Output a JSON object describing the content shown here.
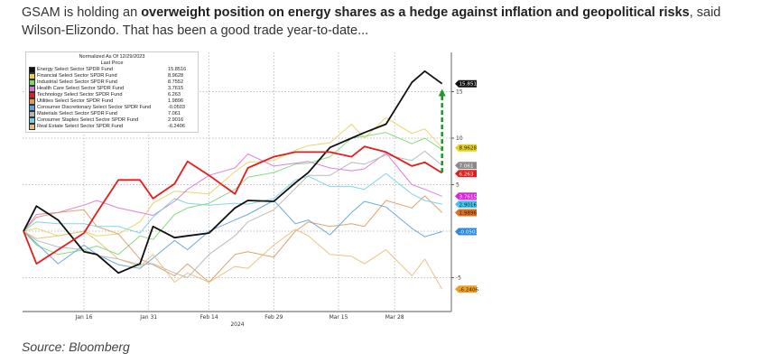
{
  "article": {
    "text_before": "GSAM is holding an ",
    "text_bold": "overweight position on energy shares as a hedge against inflation and geopolitical risks",
    "text_after": ", said Wilson-Elizondo. That has been a good trade year-to-date...",
    "source": "Source: Bloomberg"
  },
  "chart_data": {
    "type": "line",
    "legend_title": "Normalized As Of 12/29/2023",
    "legend_subtitle": "Last Price",
    "legend_position": "top-left",
    "grid": true,
    "xlabel": "2024",
    "x_ticks": [
      "Jan 16",
      "Jan 31",
      "Feb 14",
      "Feb 29",
      "Mar 15",
      "Mar 28"
    ],
    "x_tick_dates": [
      "2024-01-16",
      "2024-01-31",
      "2024-02-14",
      "2024-02-29",
      "2024-03-15",
      "2024-03-28"
    ],
    "y_ticks": [
      "15",
      "10",
      "5",
      "-5"
    ],
    "y_tick_values": [
      15,
      10,
      5,
      -5
    ],
    "ylim": [
      -9,
      19
    ],
    "y_axis_side": "right",
    "x": [
      "2024-01-02",
      "2024-01-05",
      "2024-01-10",
      "2024-01-16",
      "2024-01-19",
      "2024-01-24",
      "2024-01-29",
      "2024-02-01",
      "2024-02-06",
      "2024-02-09",
      "2024-02-14",
      "2024-02-20",
      "2024-02-23",
      "2024-02-29",
      "2024-03-05",
      "2024-03-08",
      "2024-03-13",
      "2024-03-18",
      "2024-03-21",
      "2024-03-26",
      "2024-04-01",
      "2024-04-04",
      "2024-04-08"
    ],
    "series": [
      {
        "name": "Energy Select Sector SPDR Fund",
        "last": "15.8516",
        "color": "#111111",
        "emphasis": true,
        "values": [
          0,
          2.7,
          1.2,
          -2.2,
          -2.5,
          -4.5,
          -3.5,
          0.5,
          -0.7,
          -0.5,
          -0.2,
          2.5,
          3.3,
          3.2,
          5.2,
          6.3,
          9,
          10,
          10.6,
          11.5,
          16,
          17.2,
          15.85
        ]
      },
      {
        "name": "Financial Select Sector SPDR Fund",
        "last": "8.9628",
        "color": "#e6d25a",
        "values": [
          0,
          0.3,
          -0.5,
          0,
          -0.5,
          -0.3,
          1,
          3,
          4.3,
          4.2,
          4,
          6.4,
          7.4,
          7.6,
          8.7,
          9.2,
          9.5,
          11.5,
          10,
          12.2,
          10.5,
          11,
          8.96
        ]
      },
      {
        "name": "Industrial Select Sector SPDR Fund",
        "last": "8.7552",
        "color": "#7ad872",
        "values": [
          0,
          -1.5,
          -2.5,
          -2,
          -1.6,
          -2.5,
          -0.5,
          -0.9,
          1.8,
          2.5,
          3,
          4.5,
          5.8,
          6.3,
          7.2,
          7.3,
          8,
          10,
          10.2,
          10.6,
          9.4,
          10,
          8.76
        ]
      },
      {
        "name": "Health Care Select Sector SPDR Fund",
        "last": "3.7615",
        "color": "#d674d6",
        "values": [
          0,
          1.8,
          2,
          2.8,
          3.3,
          2.5,
          2,
          1.7,
          3.2,
          4.5,
          6,
          6.8,
          8.3,
          7,
          7.3,
          7.5,
          6.8,
          6.5,
          6.7,
          8.4,
          5,
          4.5,
          3.76
        ]
      },
      {
        "name": "Technology Select Sector SPDR Fund",
        "last": "6.263",
        "color": "#e41c1c",
        "emphasis": true,
        "values": [
          0,
          -3.5,
          -2,
          -0.2,
          2,
          5.5,
          5.5,
          3.5,
          5.1,
          7.5,
          6,
          4,
          6.8,
          8,
          8.5,
          8.5,
          8.5,
          8,
          9.1,
          8.5,
          7,
          7.4,
          6.26
        ]
      },
      {
        "name": "Utilities Select Sector SPDR Fund",
        "last": "1.9896",
        "color": "#dd9a5c",
        "values": [
          0,
          1.5,
          2,
          2.3,
          0.5,
          -0.3,
          -3,
          -3.6,
          -4.8,
          -3.5,
          -5.5,
          -2.5,
          -2.2,
          -2.8,
          0,
          1,
          0.5,
          0.8,
          0.5,
          3.3,
          2.5,
          3.8,
          1.99
        ]
      },
      {
        "name": "Consumer Discretionary Select Sector SPDR Fund",
        "last": "-0.0503",
        "color": "#5aa0dc",
        "values": [
          0,
          -1.3,
          -3.5,
          -1.5,
          -2.5,
          -3.6,
          -4,
          -2.9,
          -1,
          -2,
          0,
          1.2,
          1.8,
          3.3,
          0.8,
          1.2,
          -0.4,
          2,
          3.2,
          2.6,
          0.3,
          -0.6,
          -0.05
        ]
      },
      {
        "name": "Materials Select Sector SPDR Fund",
        "last": "7.061",
        "color": "#b4b4b4",
        "values": [
          0,
          -1,
          -1.7,
          -2,
          -2.6,
          -3,
          -3.6,
          -3.5,
          -4.5,
          -5,
          -2.5,
          -0.5,
          1,
          2.3,
          4.6,
          6,
          6,
          7.4,
          7.2,
          8.2,
          7.6,
          8.6,
          7.06
        ]
      },
      {
        "name": "Consumer Staples Select Sector SPDR Fund",
        "last": "2.9016",
        "color": "#72cfe4",
        "values": [
          0,
          1,
          0.8,
          0.8,
          0.5,
          0.5,
          -0.2,
          1.5,
          3.5,
          3,
          2.8,
          3,
          2.9,
          3.5,
          5.5,
          5.9,
          4.8,
          4.8,
          4.5,
          6.2,
          4,
          3.3,
          2.9
        ]
      },
      {
        "name": "Real Estate Select Sector SPDR Fund",
        "last": "-6.2406",
        "color": "#e6bc7a",
        "values": [
          0,
          -0.8,
          -0.5,
          0,
          -1,
          -3,
          -3.8,
          -2.5,
          -5.5,
          -4.5,
          -5.5,
          -3.8,
          -4,
          -1.5,
          0.2,
          -0.5,
          -2.5,
          -2.7,
          -3.5,
          -2,
          -4.8,
          -3,
          -6.24
        ]
      }
    ],
    "value_tags": [
      {
        "label": "15.8516",
        "value": 15.85,
        "bg": "#111111",
        "fg": "#ffffff"
      },
      {
        "label": "8.9628",
        "value": 8.96,
        "bg": "#e6d020",
        "fg": "#222222"
      },
      {
        "label": "7.061",
        "value": 7.06,
        "bg": "#8a8a8a",
        "fg": "#ffffff"
      },
      {
        "label": "6.263",
        "value": 6.26,
        "bg": "#e41c1c",
        "fg": "#ffffff"
      },
      {
        "label": "3.7615",
        "value": 3.76,
        "bg": "#e020e0",
        "fg": "#ffffff"
      },
      {
        "label": "2.9016",
        "value": 2.9,
        "bg": "#40c8ec",
        "fg": "#222222"
      },
      {
        "label": "1.9896",
        "value": 1.99,
        "bg": "#e07020",
        "fg": "#222222"
      },
      {
        "label": "-0.0503",
        "value": -0.05,
        "bg": "#2a88e0",
        "fg": "#ffffff"
      },
      {
        "label": "-6.2406",
        "value": -6.24,
        "bg": "#f0a020",
        "fg": "#222222"
      }
    ],
    "annotation": {
      "type": "dashed-arrow",
      "color": "#1f9a2a",
      "date": "2024-04-08",
      "from": 6.3,
      "to": 15.2
    }
  }
}
